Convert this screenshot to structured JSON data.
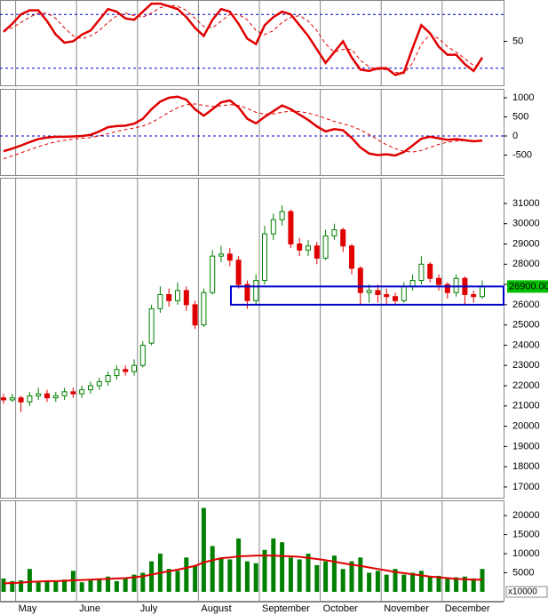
{
  "chart_data": [
    {
      "type": "line",
      "ylim": [
        17.3,
        80.7
      ],
      "yticks": [
        50
      ],
      "levels": [
        30,
        70
      ],
      "level_color": "#0000cc",
      "series": [
        {
          "color": "#e00000",
          "style": "solid",
          "values": [
            57,
            63,
            70,
            73,
            73,
            65,
            55,
            49,
            50,
            55,
            58,
            66,
            74,
            72,
            67,
            66,
            72,
            78,
            78,
            76,
            74,
            68,
            60,
            54,
            66,
            74,
            72,
            63,
            52,
            48,
            62,
            68,
            72,
            70,
            62,
            54,
            44,
            34,
            42,
            50,
            38,
            29,
            28,
            30,
            30,
            25,
            27,
            45,
            62,
            56,
            46,
            40,
            40,
            33,
            28,
            38
          ]
        },
        {
          "color": "#e00000",
          "style": "dashed",
          "values": [
            58,
            60,
            64,
            68,
            71,
            71,
            67,
            60,
            54,
            52,
            54,
            58,
            64,
            69,
            71,
            69,
            68,
            71,
            75,
            77,
            76,
            73,
            67,
            61,
            60,
            65,
            70,
            70,
            66,
            58,
            55,
            58,
            64,
            68,
            69,
            65,
            58,
            48,
            42,
            44,
            44,
            36,
            31,
            29,
            29,
            27,
            26,
            34,
            48,
            55,
            52,
            46,
            42,
            37,
            32,
            32
          ]
        }
      ]
    },
    {
      "type": "line",
      "ylim": [
        -1023,
        1233
      ],
      "yticks": [
        1000,
        500,
        0,
        -500
      ],
      "levels": [
        0
      ],
      "level_color": "#0000cc",
      "series": [
        {
          "color": "#e00000",
          "style": "solid",
          "values": [
            -400,
            -330,
            -250,
            -160,
            -80,
            -40,
            -20,
            -20,
            -10,
            0,
            30,
            120,
            230,
            260,
            270,
            320,
            450,
            700,
            900,
            1000,
            1030,
            950,
            700,
            530,
            700,
            880,
            930,
            750,
            450,
            330,
            500,
            650,
            800,
            700,
            560,
            420,
            250,
            120,
            180,
            150,
            -50,
            -300,
            -460,
            -500,
            -480,
            -510,
            -420,
            -250,
            -70,
            -20,
            -60,
            -100,
            -80,
            -110,
            -140,
            -120
          ]
        },
        {
          "color": "#e00000",
          "style": "dashed",
          "values": [
            -600,
            -520,
            -440,
            -360,
            -280,
            -210,
            -150,
            -110,
            -80,
            -60,
            -40,
            0,
            60,
            120,
            170,
            210,
            260,
            350,
            480,
            620,
            740,
            820,
            840,
            800,
            770,
            790,
            820,
            800,
            720,
            620,
            570,
            580,
            620,
            650,
            640,
            600,
            540,
            460,
            380,
            320,
            250,
            160,
            40,
            -100,
            -230,
            -330,
            -400,
            -420,
            -380,
            -300,
            -220,
            -160,
            -130,
            -120,
            -120,
            -120
          ]
        }
      ]
    },
    {
      "type": "candlestick",
      "ylim": [
        16470,
        32270
      ],
      "yticks": [
        17000,
        18000,
        19000,
        20000,
        21000,
        22000,
        23000,
        24000,
        25000,
        26000,
        27000,
        28000,
        29000,
        30000,
        31000
      ],
      "up_color": "#008000",
      "down_color": "#e00000",
      "zone": [
        26000,
        26900
      ],
      "zone_color": "#0000cc",
      "last_value": 26900,
      "last_label": "26900.00",
      "open": [
        21400,
        21300,
        21400,
        21200,
        21500,
        21600,
        21400,
        21500,
        21700,
        21600,
        21800,
        22000,
        22200,
        22500,
        22800,
        22700,
        23000,
        24100,
        25800,
        26500,
        26200,
        26700,
        26000,
        25000,
        26600,
        28400,
        28500,
        28200,
        27000,
        26200,
        27200,
        29500,
        30200,
        30600,
        29000,
        28700,
        28900,
        28300,
        29400,
        29700,
        28900,
        27800,
        26600,
        26700,
        26500,
        26400,
        26200,
        26900,
        27200,
        28000,
        27300,
        27000,
        26600,
        27300,
        26500,
        26400
      ],
      "high": [
        21600,
        21600,
        21500,
        21700,
        21900,
        21800,
        21700,
        21900,
        21900,
        22000,
        22200,
        22400,
        22700,
        23000,
        23000,
        23300,
        24200,
        26000,
        26900,
        26800,
        27100,
        26900,
        26200,
        26800,
        28700,
        28900,
        28800,
        28400,
        27200,
        27500,
        29900,
        30500,
        30900,
        30700,
        29300,
        29200,
        29100,
        29700,
        30000,
        29800,
        29000,
        27900,
        27000,
        27000,
        26800,
        26600,
        27100,
        27500,
        28400,
        28100,
        27500,
        27100,
        27500,
        27400,
        26700,
        27200
      ],
      "low": [
        21100,
        21200,
        20700,
        21000,
        21300,
        21200,
        21200,
        21300,
        21400,
        21400,
        21600,
        21800,
        22000,
        22300,
        22500,
        22500,
        22900,
        24000,
        25600,
        25900,
        26000,
        25700,
        24800,
        24900,
        26500,
        28100,
        27900,
        26800,
        25800,
        26000,
        27000,
        29200,
        29900,
        28800,
        28400,
        28400,
        28000,
        28200,
        29200,
        28600,
        27500,
        26000,
        26100,
        26100,
        26000,
        26000,
        26100,
        26700,
        27000,
        27100,
        26700,
        26300,
        26400,
        26000,
        26100,
        26300
      ],
      "close": [
        21300,
        21400,
        21200,
        21500,
        21600,
        21400,
        21500,
        21700,
        21600,
        21800,
        22000,
        22200,
        22500,
        22800,
        22700,
        23000,
        24000,
        25800,
        26500,
        26200,
        26700,
        26000,
        25000,
        26600,
        28400,
        28500,
        28200,
        27000,
        26200,
        27200,
        29500,
        30200,
        30600,
        29000,
        28700,
        28900,
        28300,
        29400,
        29700,
        28900,
        27800,
        26600,
        26700,
        26500,
        26400,
        26200,
        26900,
        27200,
        28000,
        27300,
        27000,
        26600,
        27300,
        26500,
        26400,
        26900
      ]
    },
    {
      "type": "bar",
      "ylim": [
        -2350,
        23990
      ],
      "yticks": [
        5000,
        10000,
        15000,
        20000
      ],
      "unit_label": "x10000",
      "color": "#008000",
      "categories": [
        null,
        null,
        "May",
        null,
        null,
        null,
        null,
        null,
        null,
        "June",
        null,
        null,
        null,
        null,
        null,
        null,
        "July",
        null,
        null,
        null,
        null,
        null,
        null,
        "August",
        null,
        null,
        null,
        null,
        null,
        null,
        "September",
        null,
        null,
        null,
        null,
        null,
        null,
        "October",
        null,
        null,
        null,
        null,
        null,
        null,
        "November",
        null,
        null,
        null,
        null,
        null,
        null,
        "December",
        null,
        null,
        null,
        null
      ],
      "values": [
        3500,
        2800,
        3000,
        6000,
        2500,
        3000,
        2800,
        3200,
        5500,
        2500,
        3000,
        3500,
        4000,
        2800,
        3500,
        4500,
        5000,
        8000,
        10000,
        6000,
        5500,
        9000,
        7000,
        22000,
        12000,
        9000,
        8500,
        14000,
        8000,
        7500,
        11000,
        14000,
        13000,
        9000,
        8500,
        10000,
        7000,
        8000,
        9500,
        6000,
        8000,
        9000,
        5000,
        5500,
        4500,
        6000,
        4500,
        5000,
        5500,
        4000,
        4200,
        3500,
        3800,
        4000,
        3500,
        6000
      ],
      "line": {
        "color": "#e00000",
        "values": [
          2200,
          2300,
          2400,
          2600,
          2700,
          2800,
          2800,
          2900,
          3000,
          3100,
          3200,
          3300,
          3400,
          3500,
          3600,
          3800,
          4100,
          4500,
          5000,
          5400,
          5800,
          6300,
          6800,
          7700,
          8300,
          8800,
          9000,
          9300,
          9400,
          9500,
          9500,
          9500,
          9400,
          9300,
          9200,
          8900,
          8600,
          8300,
          7900,
          7500,
          7100,
          6800,
          6400,
          6000,
          5600,
          5200,
          4900,
          4600,
          4300,
          4000,
          3800,
          3600,
          3400,
          3300,
          3200,
          3200
        ]
      }
    }
  ]
}
